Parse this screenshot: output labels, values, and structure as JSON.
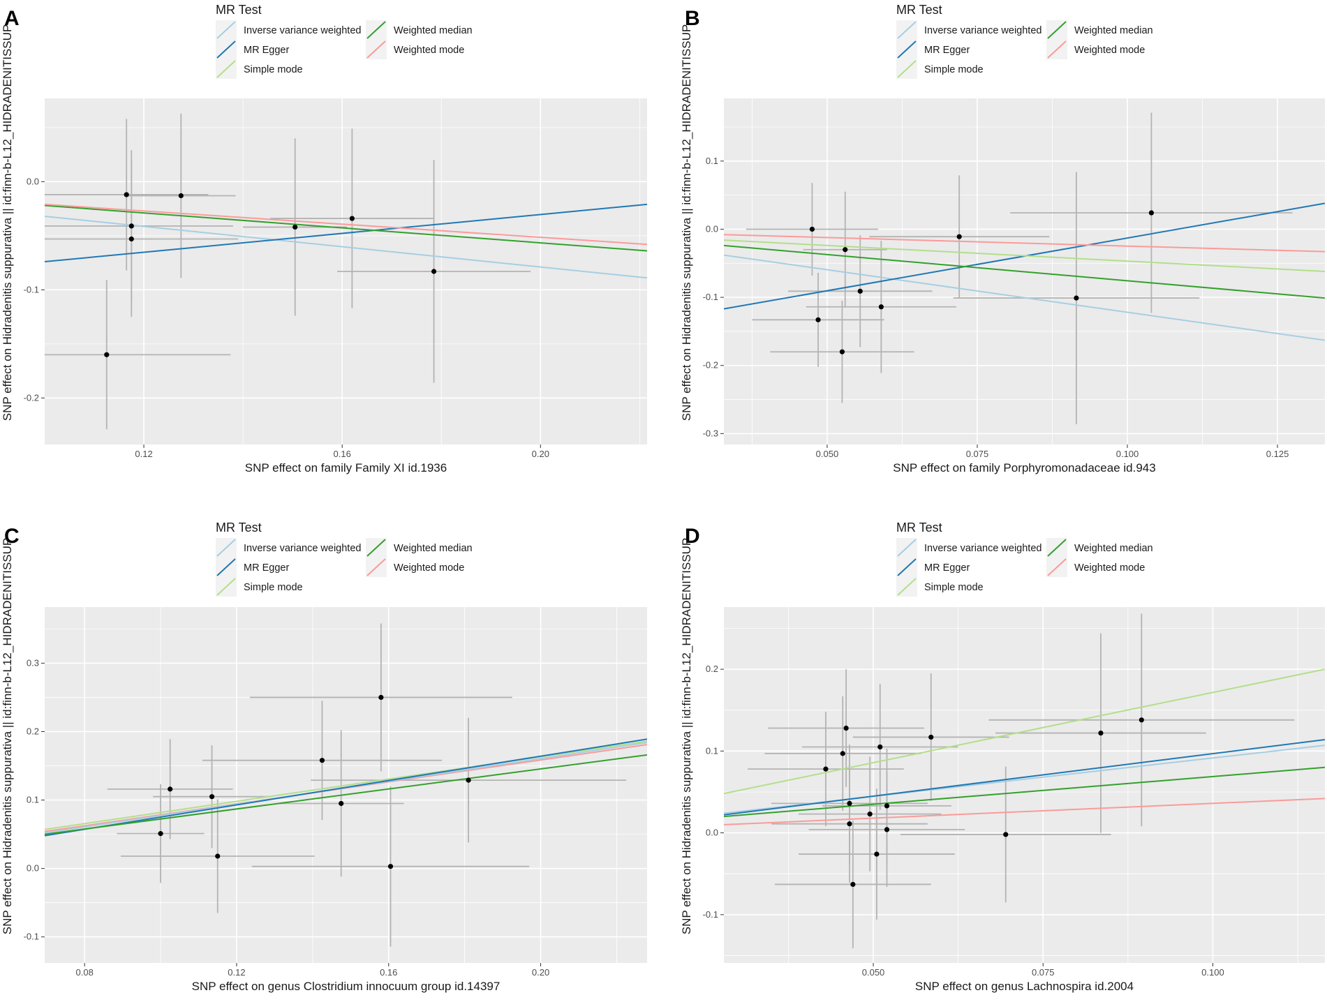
{
  "legend": {
    "title": "MR Test",
    "entries": [
      {
        "name": "Inverse variance weighted",
        "color": "#a6cee3"
      },
      {
        "name": "MR Egger",
        "color": "#1f78b4"
      },
      {
        "name": "Simple mode",
        "color": "#b2df8a"
      },
      {
        "name": "Weighted median",
        "color": "#33a02c"
      },
      {
        "name": "Weighted mode",
        "color": "#fb9a99"
      }
    ]
  },
  "colors": {
    "panel_background": "#ebebeb",
    "grid_major": "#ffffff",
    "point": "#000000",
    "error_bar": "#b3b3b3"
  },
  "chart_data": [
    {
      "type": "scatter",
      "panel_label": "A",
      "xlabel": "SNP effect on family Family XI id.1936",
      "ylabel": "SNP effect on Hidradenitis suppurativa || id:finn-b-L12_HIDRADENITISSUP",
      "xlim": [
        0.1,
        0.2215
      ],
      "ylim": [
        -0.243,
        0.077
      ],
      "xticks": [
        0.12,
        0.16,
        0.2
      ],
      "xtick_labels": [
        "0.12",
        "0.16",
        "0.20"
      ],
      "yticks": [
        -0.2,
        -0.1,
        0.0
      ],
      "ytick_labels": [
        "-0.2",
        "-0.1",
        "0.0"
      ],
      "points": [
        {
          "x": 0.1165,
          "y": -0.012,
          "xerr": 0.0165,
          "yerr": 0.07
        },
        {
          "x": 0.1275,
          "y": -0.013,
          "xerr": 0.011,
          "yerr": 0.076
        },
        {
          "x": 0.1175,
          "y": -0.041,
          "xerr": 0.0205,
          "yerr": 0.07
        },
        {
          "x": 0.1175,
          "y": -0.053,
          "xerr": 0.0215,
          "yerr": 0.072
        },
        {
          "x": 0.1125,
          "y": -0.16,
          "xerr": 0.025,
          "yerr": 0.069
        },
        {
          "x": 0.162,
          "y": -0.034,
          "xerr": 0.0165,
          "yerr": 0.083
        },
        {
          "x": 0.1785,
          "y": -0.083,
          "xerr": 0.0195,
          "yerr": 0.103
        },
        {
          "x": 0.1505,
          "y": -0.042,
          "xerr": 0.0105,
          "yerr": 0.082
        }
      ],
      "lines": [
        {
          "name": "Inverse variance weighted",
          "x": [
            0.1,
            0.2215
          ],
          "y": [
            -0.032,
            -0.089
          ]
        },
        {
          "name": "MR Egger",
          "x": [
            0.1,
            0.2215
          ],
          "y": [
            -0.074,
            -0.021
          ]
        },
        {
          "name": "Weighted median",
          "x": [
            0.1,
            0.2215
          ],
          "y": [
            -0.022,
            -0.064
          ]
        },
        {
          "name": "Weighted mode",
          "x": [
            0.1,
            0.2215
          ],
          "y": [
            -0.021,
            -0.058
          ]
        }
      ]
    },
    {
      "type": "scatter",
      "panel_label": "B",
      "xlabel": "SNP effect on family Porphyromonadaceae id.943",
      "ylabel": "SNP effect on Hidradenitis suppurativa || id:finn-b-L12_HIDRADENITISSUP",
      "xlim": [
        0.0328,
        0.1329
      ],
      "ylim": [
        -0.316,
        0.192
      ],
      "xticks": [
        0.05,
        0.075,
        0.1,
        0.125
      ],
      "xtick_labels": [
        "0.050",
        "0.075",
        "0.100",
        "0.125"
      ],
      "yticks": [
        -0.3,
        -0.2,
        -0.1,
        0.0,
        0.1
      ],
      "ytick_labels": [
        "-0.3",
        "-0.2",
        "-0.1",
        "0.0",
        "0.1"
      ],
      "points": [
        {
          "x": 0.0475,
          "y": 0.0,
          "xerr": 0.011,
          "yerr": 0.068
        },
        {
          "x": 0.053,
          "y": -0.03,
          "xerr": 0.007,
          "yerr": 0.085
        },
        {
          "x": 0.0555,
          "y": -0.091,
          "xerr": 0.012,
          "yerr": 0.082
        },
        {
          "x": 0.059,
          "y": -0.114,
          "xerr": 0.0125,
          "yerr": 0.097
        },
        {
          "x": 0.0485,
          "y": -0.133,
          "xerr": 0.011,
          "yerr": 0.069
        },
        {
          "x": 0.0525,
          "y": -0.18,
          "xerr": 0.012,
          "yerr": 0.075
        },
        {
          "x": 0.072,
          "y": -0.011,
          "xerr": 0.015,
          "yerr": 0.09
        },
        {
          "x": 0.0915,
          "y": -0.101,
          "xerr": 0.0205,
          "yerr": 0.185
        },
        {
          "x": 0.104,
          "y": 0.024,
          "xerr": 0.0235,
          "yerr": 0.147
        }
      ],
      "lines": [
        {
          "name": "Inverse variance weighted",
          "x": [
            0.0328,
            0.1329
          ],
          "y": [
            -0.038,
            -0.163
          ]
        },
        {
          "name": "MR Egger",
          "x": [
            0.0328,
            0.1329
          ],
          "y": [
            -0.117,
            0.038
          ]
        },
        {
          "name": "Simple mode",
          "x": [
            0.0328,
            0.1329
          ],
          "y": [
            -0.016,
            -0.062
          ]
        },
        {
          "name": "Weighted median",
          "x": [
            0.0328,
            0.1329
          ],
          "y": [
            -0.024,
            -0.101
          ]
        },
        {
          "name": "Weighted mode",
          "x": [
            0.0328,
            0.1329
          ],
          "y": [
            -0.008,
            -0.033
          ]
        }
      ]
    },
    {
      "type": "scatter",
      "panel_label": "C",
      "xlabel": "SNP effect on genus Clostridium innocuum group id.14397",
      "ylabel": "SNP effect on Hidradenitis suppurativa || id:finn-b-L12_HIDRADENITISSUP",
      "xlim": [
        0.0695,
        0.228
      ],
      "ylim": [
        -0.138,
        0.382
      ],
      "xticks": [
        0.08,
        0.12,
        0.16,
        0.2
      ],
      "xtick_labels": [
        "0.08",
        "0.12",
        "0.16",
        "0.20"
      ],
      "yticks": [
        -0.1,
        0.0,
        0.1,
        0.2,
        0.3
      ],
      "ytick_labels": [
        "-0.1",
        "0.0",
        "0.1",
        "0.2",
        "0.3"
      ],
      "points": [
        {
          "x": 0.1,
          "y": 0.051,
          "xerr": 0.0115,
          "yerr": 0.072
        },
        {
          "x": 0.1025,
          "y": 0.116,
          "xerr": 0.0165,
          "yerr": 0.073
        },
        {
          "x": 0.1135,
          "y": 0.105,
          "xerr": 0.0155,
          "yerr": 0.075
        },
        {
          "x": 0.115,
          "y": 0.018,
          "xerr": 0.0255,
          "yerr": 0.083
        },
        {
          "x": 0.1425,
          "y": 0.158,
          "xerr": 0.0315,
          "yerr": 0.087
        },
        {
          "x": 0.1475,
          "y": 0.095,
          "xerr": 0.0165,
          "yerr": 0.107
        },
        {
          "x": 0.158,
          "y": 0.25,
          "xerr": 0.0345,
          "yerr": 0.108
        },
        {
          "x": 0.1605,
          "y": 0.003,
          "xerr": 0.0365,
          "yerr": 0.117
        },
        {
          "x": 0.181,
          "y": 0.129,
          "xerr": 0.0415,
          "yerr": 0.091
        }
      ],
      "lines": [
        {
          "name": "Simple mode",
          "x": [
            0.0695,
            0.228
          ],
          "y": [
            0.057,
            0.186
          ]
        },
        {
          "name": "Weighted mode",
          "x": [
            0.0695,
            0.228
          ],
          "y": [
            0.054,
            0.181
          ]
        },
        {
          "name": "Inverse variance weighted",
          "x": [
            0.0695,
            0.228
          ],
          "y": [
            0.052,
            0.184
          ]
        },
        {
          "name": "MR Egger",
          "x": [
            0.0695,
            0.228
          ],
          "y": [
            0.048,
            0.189
          ]
        },
        {
          "name": "Weighted median",
          "x": [
            0.0695,
            0.228
          ],
          "y": [
            0.05,
            0.166
          ]
        }
      ]
    },
    {
      "type": "scatter",
      "panel_label": "D",
      "xlabel": "SNP effect on genus Lachnospira id.2004",
      "ylabel": "SNP effect on Hidradenitis suppurativa || id:finn-b-L12_HIDRADENITISSUP",
      "xlim": [
        0.028,
        0.1165
      ],
      "ylim": [
        -0.159,
        0.276
      ],
      "xticks": [
        0.05,
        0.075,
        0.1
      ],
      "xtick_labels": [
        "0.050",
        "0.075",
        "0.100"
      ],
      "yticks": [
        -0.1,
        0.0,
        0.1,
        0.2
      ],
      "ytick_labels": [
        "-0.1",
        "0.0",
        "0.1",
        "0.2"
      ],
      "points": [
        {
          "x": 0.043,
          "y": 0.078,
          "xerr": 0.0115,
          "yerr": 0.07
        },
        {
          "x": 0.0455,
          "y": 0.097,
          "xerr": 0.0115,
          "yerr": 0.07
        },
        {
          "x": 0.046,
          "y": 0.128,
          "xerr": 0.0115,
          "yerr": 0.072
        },
        {
          "x": 0.0465,
          "y": 0.036,
          "xerr": 0.0115,
          "yerr": 0.072
        },
        {
          "x": 0.0465,
          "y": 0.011,
          "xerr": 0.0115,
          "yerr": 0.072
        },
        {
          "x": 0.047,
          "y": -0.063,
          "xerr": 0.0115,
          "yerr": 0.078
        },
        {
          "x": 0.0495,
          "y": 0.023,
          "xerr": 0.0105,
          "yerr": 0.07
        },
        {
          "x": 0.0505,
          "y": -0.026,
          "xerr": 0.0115,
          "yerr": 0.08
        },
        {
          "x": 0.051,
          "y": 0.105,
          "xerr": 0.0115,
          "yerr": 0.077
        },
        {
          "x": 0.052,
          "y": 0.033,
          "xerr": 0.0095,
          "yerr": 0.07
        },
        {
          "x": 0.052,
          "y": 0.004,
          "xerr": 0.0115,
          "yerr": 0.07
        },
        {
          "x": 0.0585,
          "y": 0.117,
          "xerr": 0.0115,
          "yerr": 0.078
        },
        {
          "x": 0.0695,
          "y": -0.002,
          "xerr": 0.0155,
          "yerr": 0.083
        },
        {
          "x": 0.0835,
          "y": 0.122,
          "xerr": 0.0155,
          "yerr": 0.122
        },
        {
          "x": 0.0895,
          "y": 0.138,
          "xerr": 0.0225,
          "yerr": 0.13
        }
      ],
      "lines": [
        {
          "name": "Simple mode",
          "x": [
            0.028,
            0.1165
          ],
          "y": [
            0.048,
            0.2
          ]
        },
        {
          "name": "Inverse variance weighted",
          "x": [
            0.028,
            0.1165
          ],
          "y": [
            0.024,
            0.107
          ]
        },
        {
          "name": "MR Egger",
          "x": [
            0.028,
            0.1165
          ],
          "y": [
            0.022,
            0.114
          ]
        },
        {
          "name": "Weighted median",
          "x": [
            0.028,
            0.1165
          ],
          "y": [
            0.02,
            0.08
          ]
        },
        {
          "name": "Weighted mode",
          "x": [
            0.028,
            0.1165
          ],
          "y": [
            0.01,
            0.042
          ]
        }
      ]
    }
  ]
}
